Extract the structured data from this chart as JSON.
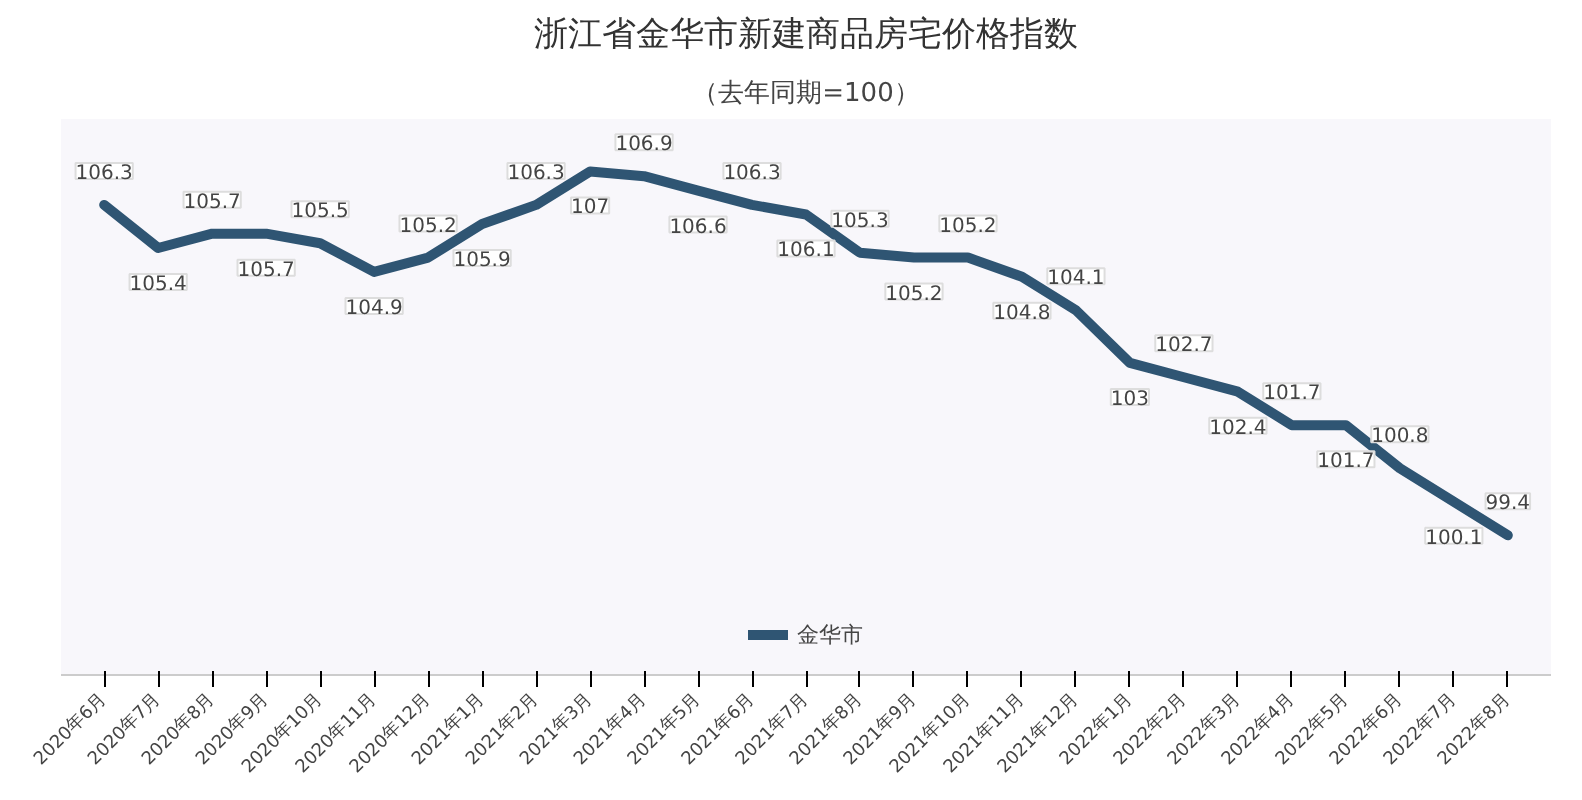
{
  "chart_data": {
    "type": "line",
    "title": "浙江省金华市新建商品房宅价格指数",
    "subtitle": "（去年同期=100）",
    "categories": [
      "2020年6月",
      "2020年7月",
      "2020年8月",
      "2020年9月",
      "2020年10月",
      "2020年11月",
      "2020年12月",
      "2021年1月",
      "2021年2月",
      "2021年3月",
      "2021年4月",
      "2021年5月",
      "2021年6月",
      "2021年7月",
      "2021年8月",
      "2021年9月",
      "2021年10月",
      "2021年11月",
      "2021年12月",
      "2022年1月",
      "2022年2月",
      "2022年3月",
      "2022年4月",
      "2022年5月",
      "2022年6月",
      "2022年7月",
      "2022年8月"
    ],
    "series": [
      {
        "name": "金华市",
        "color": "#2f5573",
        "values": [
          106.3,
          105.4,
          105.7,
          105.7,
          105.5,
          104.9,
          105.2,
          105.9,
          106.3,
          107,
          106.9,
          106.6,
          106.3,
          106.1,
          105.3,
          105.2,
          105.2,
          104.8,
          104.1,
          103,
          102.7,
          102.4,
          101.7,
          101.7,
          100.8,
          100.1,
          99.4
        ]
      }
    ],
    "data_labels": true,
    "legend": "bottom",
    "grid": false,
    "marker": "none",
    "line_style": "solid"
  }
}
